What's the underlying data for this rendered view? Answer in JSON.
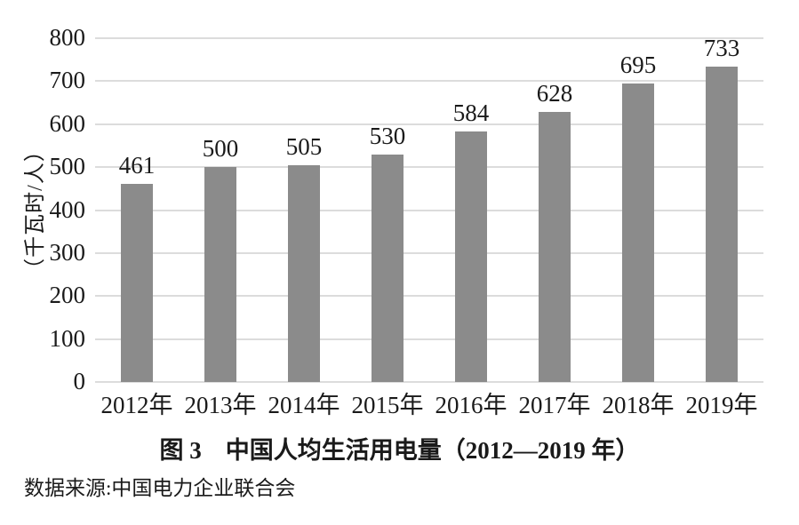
{
  "page": {
    "background": "#ffffff",
    "text_color": "#1a1a1a"
  },
  "chart_data": {
    "type": "bar",
    "categories": [
      "2012年",
      "2013年",
      "2014年",
      "2015年",
      "2016年",
      "2017年",
      "2018年",
      "2019年"
    ],
    "values": [
      461,
      500,
      505,
      530,
      584,
      628,
      695,
      733
    ],
    "title": "图 3　中国人均生活用电量（2012—2019 年）",
    "xlabel": "",
    "ylabel": "（千瓦时/人）",
    "ylim": [
      0,
      800
    ],
    "yticks": [
      0,
      100,
      200,
      300,
      400,
      500,
      600,
      700,
      800
    ],
    "grid": true,
    "legend": "none",
    "bar_color": "#8b8b8b",
    "grid_color": "#dcdcdc",
    "source": "数据来源:中国电力企业联合会"
  },
  "caption": {
    "text": "图 3　中国人均生活用电量（2012—2019 年）"
  },
  "source_note": {
    "text": "数据来源:中国电力企业联合会"
  }
}
